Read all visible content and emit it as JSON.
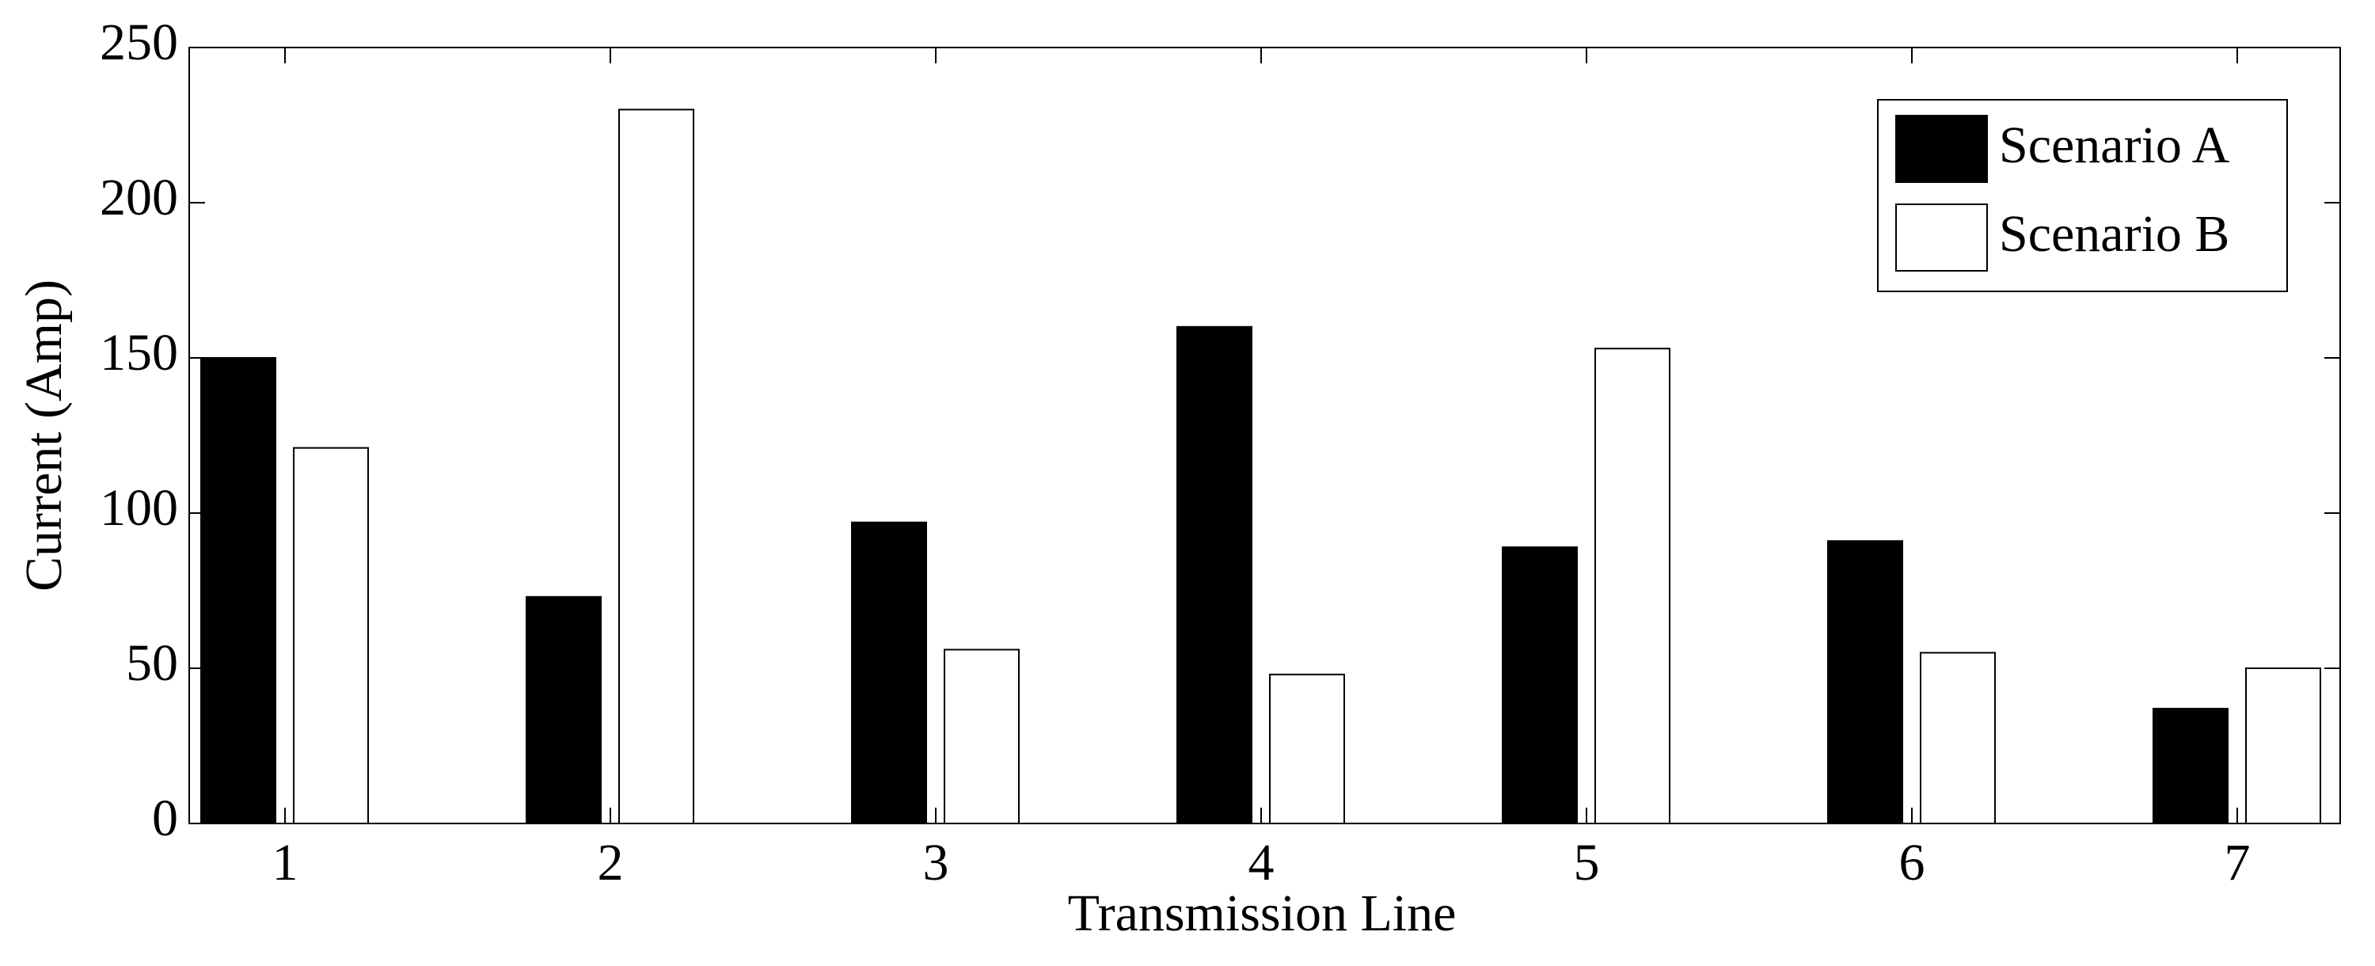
{
  "chart_data": {
    "type": "bar",
    "x_label": "Transmission Line",
    "y_label": "Current (Amp)",
    "categories": [
      "1",
      "2",
      "3",
      "4",
      "5",
      "6",
      "7"
    ],
    "series": [
      {
        "name": "Scenario A",
        "color": "#000000",
        "values": [
          150,
          73,
          97,
          160,
          89,
          91,
          37
        ]
      },
      {
        "name": "Scenario B",
        "color": "#ffffff",
        "values": [
          121,
          230,
          56,
          48,
          153,
          55,
          50
        ]
      }
    ],
    "ylim": [
      0,
      250
    ],
    "yticks": [
      0,
      50,
      100,
      150,
      200,
      250
    ],
    "legend": "upper right"
  }
}
